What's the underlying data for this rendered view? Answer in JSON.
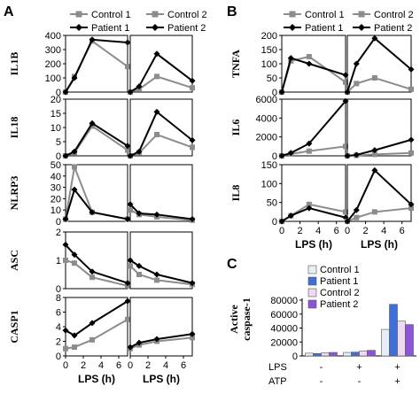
{
  "colors": {
    "control": "#8c8c8c",
    "patient": "#000000",
    "control1_bar": "#e8eef8",
    "patient1_bar": "#3f6fd8",
    "control2_bar": "#efd9f0",
    "patient2_bar": "#8a55d8"
  },
  "panels": {
    "A": "A",
    "B": "B",
    "C": "C"
  },
  "legend_lines": {
    "control1": "Control 1",
    "control2": "Control 2",
    "patient1": "Patient 1",
    "patient2": "Patient 2"
  },
  "chart_data": [
    {
      "type": "line",
      "panel": "A",
      "row": "IL1B",
      "ylabel": "IL1B",
      "ylim": [
        0,
        400
      ],
      "yticks": [
        0,
        100,
        200,
        300,
        400
      ],
      "x": [
        0,
        1,
        3,
        7
      ],
      "series": [
        {
          "name": "Control 1",
          "values": [
            0,
            110,
            360,
            180
          ]
        },
        {
          "name": "Patient 1",
          "values": [
            0,
            100,
            370,
            350
          ]
        },
        {
          "name": "Control 2",
          "values": [
            0,
            20,
            110,
            30
          ]
        },
        {
          "name": "Patient 2",
          "values": [
            0,
            40,
            270,
            80
          ]
        }
      ]
    },
    {
      "type": "line",
      "panel": "A",
      "row": "IL18",
      "ylabel": "IL18",
      "ylim": [
        0,
        20
      ],
      "yticks": [
        0,
        5,
        10,
        15,
        20
      ],
      "x": [
        0,
        1,
        3,
        7
      ],
      "series": [
        {
          "name": "Control 1",
          "values": [
            0,
            1,
            10.5,
            2
          ]
        },
        {
          "name": "Patient 1",
          "values": [
            0,
            1.5,
            11.5,
            3.5
          ]
        },
        {
          "name": "Control 2",
          "values": [
            0,
            1,
            7.5,
            3
          ]
        },
        {
          "name": "Patient 2",
          "values": [
            0,
            1.5,
            15.5,
            5.5
          ]
        }
      ]
    },
    {
      "type": "line",
      "panel": "A",
      "row": "NLRP3",
      "ylabel": "NLRP3",
      "ylim": [
        0,
        50
      ],
      "yticks": [
        0,
        10,
        20,
        30,
        40,
        50
      ],
      "x": [
        0,
        1,
        3,
        7
      ],
      "series": [
        {
          "name": "Control 1",
          "values": [
            2,
            48,
            8,
            2
          ]
        },
        {
          "name": "Patient 1",
          "values": [
            2,
            28,
            8,
            2
          ]
        },
        {
          "name": "Control 2",
          "values": [
            10,
            6,
            4,
            1
          ]
        },
        {
          "name": "Patient 2",
          "values": [
            15,
            7,
            6,
            2
          ]
        }
      ]
    },
    {
      "type": "line",
      "panel": "A",
      "row": "ASC",
      "ylabel": "ASC",
      "ylim": [
        0,
        2
      ],
      "yticks": [
        0,
        1,
        2
      ],
      "x": [
        0,
        1,
        3,
        7
      ],
      "series": [
        {
          "name": "Control 1",
          "values": [
            1.0,
            0.9,
            0.4,
            0.1
          ]
        },
        {
          "name": "Patient 1",
          "values": [
            1.55,
            1.2,
            0.6,
            0.2
          ]
        },
        {
          "name": "Control 2",
          "values": [
            0.8,
            0.5,
            0.3,
            0.15
          ]
        },
        {
          "name": "Patient 2",
          "values": [
            1.0,
            0.8,
            0.5,
            0.2
          ]
        }
      ]
    },
    {
      "type": "line",
      "panel": "A",
      "row": "CASP1",
      "ylabel": "CASP1",
      "ylim": [
        0,
        8
      ],
      "yticks": [
        0,
        2,
        4,
        6,
        8
      ],
      "x": [
        0,
        1,
        3,
        7
      ],
      "xticks": [
        0,
        2,
        4,
        6
      ],
      "xlabel": "LPS (h)",
      "series": [
        {
          "name": "Control 1",
          "values": [
            1.0,
            1.2,
            2.2,
            5.0
          ]
        },
        {
          "name": "Patient 1",
          "values": [
            3.5,
            2.8,
            4.5,
            7.5
          ]
        },
        {
          "name": "Control 2",
          "values": [
            1.0,
            1.5,
            2.0,
            2.5
          ]
        },
        {
          "name": "Patient 2",
          "values": [
            1.2,
            1.8,
            2.3,
            3.0
          ]
        }
      ]
    },
    {
      "type": "line",
      "panel": "B",
      "row": "TNFA",
      "ylabel": "TNFA",
      "ylim": [
        0,
        200
      ],
      "yticks": [
        0,
        50,
        100,
        150,
        200
      ],
      "x": [
        0,
        1,
        3,
        7
      ],
      "series": [
        {
          "name": "Control 1",
          "values": [
            0,
            110,
            125,
            35
          ]
        },
        {
          "name": "Patient 1",
          "values": [
            0,
            120,
            100,
            60
          ]
        },
        {
          "name": "Control 2",
          "values": [
            0,
            30,
            50,
            10
          ]
        },
        {
          "name": "Patient 2",
          "values": [
            0,
            100,
            190,
            80
          ]
        }
      ]
    },
    {
      "type": "line",
      "panel": "B",
      "row": "IL6",
      "ylabel": "IL6",
      "ylim": [
        0,
        6000
      ],
      "yticks": [
        0,
        2000,
        4000,
        6000
      ],
      "x": [
        0,
        1,
        3,
        7
      ],
      "series": [
        {
          "name": "Control 1",
          "values": [
            0,
            200,
            500,
            1000
          ]
        },
        {
          "name": "Patient 1",
          "values": [
            0,
            300,
            1300,
            5800
          ]
        },
        {
          "name": "Control 2",
          "values": [
            0,
            50,
            150,
            300
          ]
        },
        {
          "name": "Patient 2",
          "values": [
            0,
            100,
            600,
            1700
          ]
        }
      ]
    },
    {
      "type": "line",
      "panel": "B",
      "row": "IL8",
      "ylabel": "IL8",
      "ylim": [
        0,
        150
      ],
      "yticks": [
        0,
        50,
        100,
        150
      ],
      "x": [
        0,
        1,
        3,
        7
      ],
      "xticks": [
        0,
        2,
        4,
        6
      ],
      "xlabel": "LPS (h)",
      "series": [
        {
          "name": "Control 1",
          "values": [
            0,
            15,
            45,
            25
          ]
        },
        {
          "name": "Patient 1",
          "values": [
            0,
            15,
            35,
            10
          ]
        },
        {
          "name": "Control 2",
          "values": [
            0,
            10,
            25,
            35
          ]
        },
        {
          "name": "Patient 2",
          "values": [
            0,
            30,
            135,
            45
          ]
        }
      ]
    },
    {
      "type": "bar",
      "panel": "C",
      "ylabel": "Active caspase-1",
      "ylim": [
        0,
        80000
      ],
      "yticks": [
        0,
        20000,
        40000,
        60000,
        80000
      ],
      "row_labels": [
        "LPS",
        "ATP"
      ],
      "categories": [
        [
          "-",
          "-"
        ],
        [
          "+",
          "-"
        ],
        [
          "+",
          "+"
        ]
      ],
      "series": [
        {
          "name": "Control 1",
          "values": [
            4000,
            5000,
            38000
          ]
        },
        {
          "name": "Patient 1",
          "values": [
            3500,
            5500,
            74000
          ]
        },
        {
          "name": "Control 2",
          "values": [
            4500,
            7000,
            50000
          ]
        },
        {
          "name": "Patient 2",
          "values": [
            5000,
            8000,
            45000
          ]
        }
      ]
    }
  ]
}
